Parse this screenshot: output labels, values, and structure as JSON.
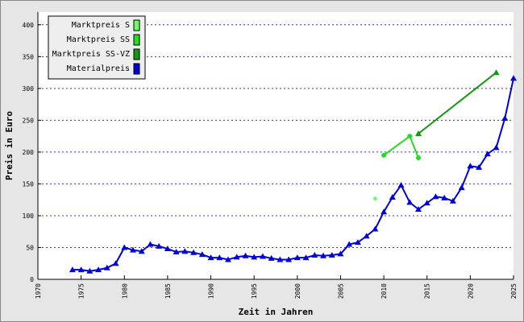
{
  "chart_data": {
    "type": "line",
    "xlabel": "Zeit in Jahren",
    "ylabel": "Preis in Euro",
    "xlim": [
      1970,
      2025
    ],
    "xticks": [
      1970,
      1975,
      1980,
      1985,
      1990,
      1995,
      2000,
      2005,
      2010,
      2015,
      2020,
      2025
    ],
    "ylim": [
      0,
      420
    ],
    "yticks": [
      0,
      50,
      100,
      150,
      200,
      250,
      300,
      350,
      400
    ],
    "grid": true,
    "legend": "upper left",
    "series": [
      {
        "name": "Marktpreis S",
        "color": "#66ff66",
        "marker": "diamond",
        "x": [
          2009
        ],
        "values": [
          127
        ]
      },
      {
        "name": "Marktpreis SS",
        "color": "#22dd22",
        "marker": "circle",
        "x": [
          2010,
          2013,
          2014
        ],
        "values": [
          195,
          225,
          191
        ]
      },
      {
        "name": "Marktpreis SS-VZ",
        "color": "#119911",
        "marker": "triangle",
        "x": [
          2014,
          2023
        ],
        "values": [
          229,
          325
        ]
      },
      {
        "name": "Materialpreis",
        "color": "#0000dd",
        "marker": "triangle",
        "x": [
          1974,
          1975,
          1976,
          1977,
          1978,
          1979,
          1980,
          1981,
          1982,
          1983,
          1984,
          1985,
          1986,
          1987,
          1988,
          1989,
          1990,
          1991,
          1992,
          1993,
          1994,
          1995,
          1996,
          1997,
          1998,
          1999,
          2000,
          2001,
          2002,
          2003,
          2004,
          2005,
          2006,
          2007,
          2008,
          2009,
          2010,
          2011,
          2012,
          2013,
          2014,
          2015,
          2016,
          2017,
          2018,
          2019,
          2020,
          2021,
          2022,
          2023,
          2024,
          2025
        ],
        "values": [
          15,
          15,
          13,
          15,
          18,
          25,
          50,
          46,
          44,
          55,
          52,
          48,
          43,
          44,
          42,
          39,
          34,
          34,
          31,
          35,
          37,
          35,
          36,
          33,
          31,
          31,
          34,
          34,
          38,
          37,
          38,
          40,
          55,
          58,
          68,
          79,
          106,
          129,
          148,
          121,
          110,
          120,
          130,
          128,
          123,
          144,
          178,
          176,
          197,
          207,
          253,
          316
        ]
      }
    ]
  }
}
